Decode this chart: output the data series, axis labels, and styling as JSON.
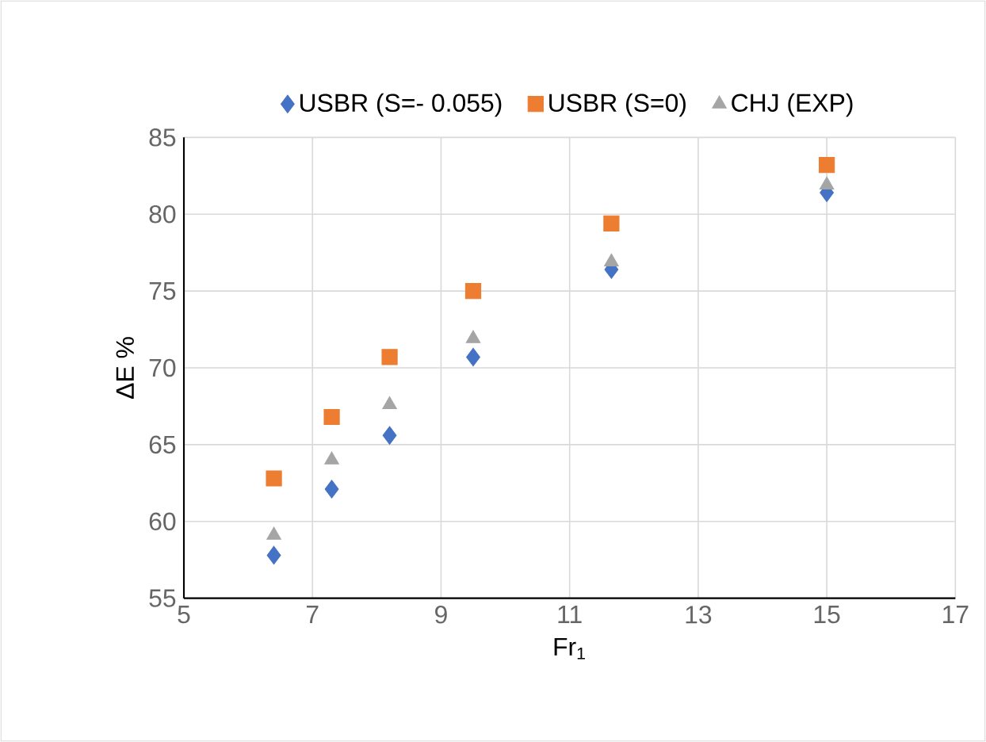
{
  "chart_data": {
    "type": "scatter",
    "xlabel": "Fr$_{1}$",
    "ylabel": "ΔE %",
    "x": [
      6.4,
      7.3,
      8.2,
      9.5,
      11.65,
      15
    ],
    "series": [
      {
        "name": "USBR (S=- 0.055)",
        "color": "#4472c4",
        "marker": "diamond",
        "values": [
          57.8,
          62.1,
          65.6,
          70.7,
          76.4,
          81.4
        ]
      },
      {
        "name": "USBR (S=0)",
        "color": "#ed7d31",
        "marker": "square",
        "values": [
          62.8,
          66.8,
          70.7,
          75.0,
          79.4,
          83.2
        ]
      },
      {
        "name": "CHJ (EXP)",
        "color": "#a5a5a5",
        "marker": "triangle",
        "values": [
          59.1,
          64.0,
          67.6,
          71.9,
          76.9,
          81.9
        ]
      }
    ],
    "xlim": [
      5,
      17
    ],
    "xticks": [
      5,
      7,
      9,
      11,
      13,
      15,
      17
    ],
    "ylim": [
      55,
      85
    ],
    "yticks": [
      55,
      60,
      65,
      70,
      75,
      80,
      85
    ],
    "grid": true,
    "legend": "top"
  }
}
